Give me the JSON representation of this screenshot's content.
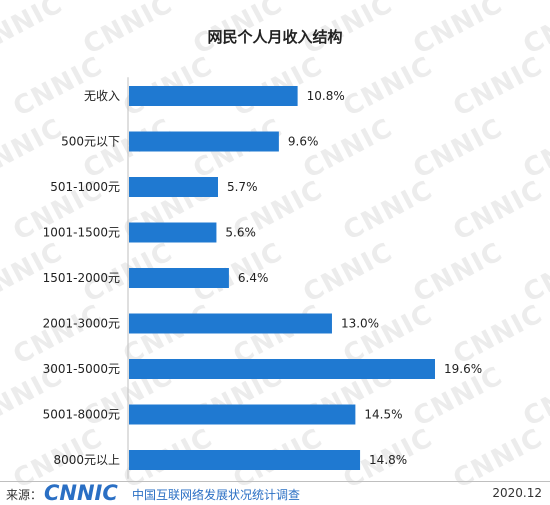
{
  "chart_data": {
    "type": "bar",
    "orientation": "horizontal",
    "title": "网民个人月收入结构",
    "categories": [
      "无收入",
      "500元以下",
      "501-1000元",
      "1001-1500元",
      "1501-2000元",
      "2001-3000元",
      "3001-5000元",
      "5001-8000元",
      "8000元以上"
    ],
    "values": [
      10.8,
      9.6,
      5.7,
      5.6,
      6.4,
      13.0,
      19.6,
      14.5,
      14.8
    ],
    "value_labels": [
      "10.8%",
      "9.6%",
      "5.7%",
      "5.6%",
      "6.4%",
      "13.0%",
      "19.6%",
      "14.5%",
      "14.8%"
    ],
    "unit": "%",
    "bar_color": "#1f79d1",
    "grid": false,
    "legend": "none"
  },
  "footer": {
    "source_label": "来源：",
    "logo_text": "CNNIC",
    "survey_text": "中国互联网络发展状况统计调查",
    "date": "2020.12"
  },
  "watermark_text": "CNNIC"
}
